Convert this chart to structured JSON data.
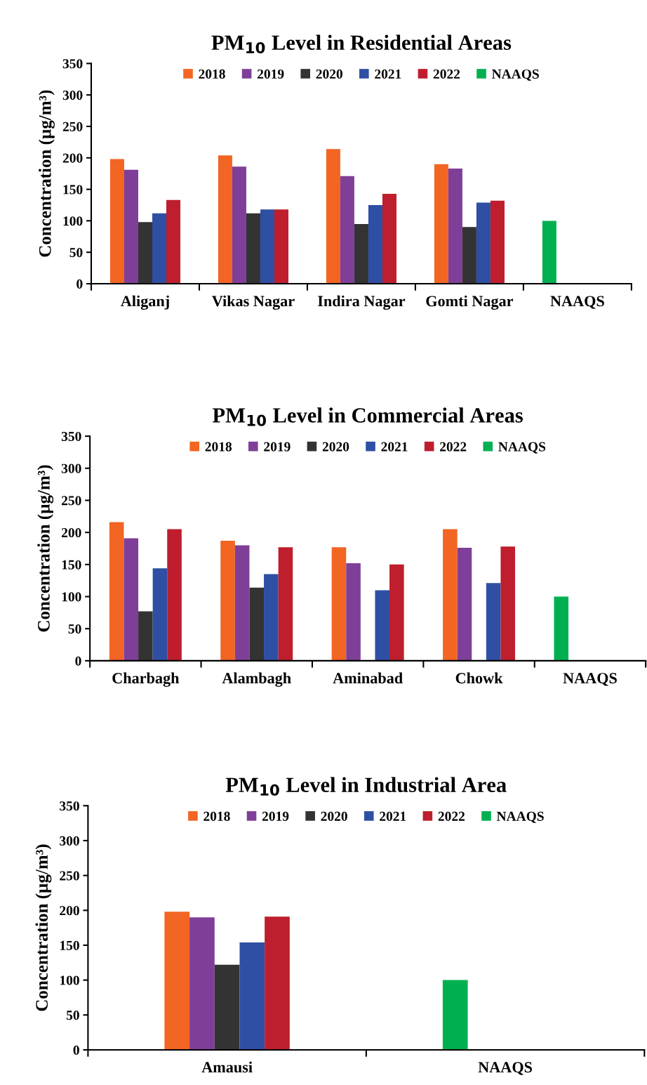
{
  "chart_data": [
    {
      "type": "bar",
      "title": "PM$_{10}$ Level in Residential Areas",
      "ylabel": "Concentration (µg/m³)",
      "categories": [
        "Aliganj",
        "Vikas Nagar",
        "Indira Nagar",
        "Gomti Nagar",
        "NAAQS"
      ],
      "ylim": [
        0,
        350
      ],
      "yticks": [
        0,
        50,
        100,
        150,
        200,
        250,
        300,
        350
      ],
      "grid": false,
      "legend": "top",
      "series": [
        {
          "name": "2018",
          "color": "#f26522",
          "values": [
            198,
            204,
            214,
            190,
            null
          ]
        },
        {
          "name": "2019",
          "color": "#7f3f98",
          "values": [
            181,
            186,
            171,
            183,
            null
          ]
        },
        {
          "name": "2020",
          "color": "#333333",
          "values": [
            98,
            112,
            95,
            90,
            null
          ]
        },
        {
          "name": "2021",
          "color": "#2e4fa3",
          "values": [
            112,
            118,
            125,
            129,
            null
          ]
        },
        {
          "name": "2022",
          "color": "#be1e2d",
          "values": [
            133,
            118,
            143,
            132,
            null
          ]
        },
        {
          "name": "NAAQS",
          "color": "#00b050",
          "values": [
            null,
            null,
            null,
            null,
            100
          ]
        }
      ]
    },
    {
      "type": "bar",
      "title": "PM$_{10}$ Level in Commercial Areas",
      "ylabel": "Concentration (µg/m³)",
      "categories": [
        "Charbagh",
        "Alambagh",
        "Aminabad",
        "Chowk",
        "NAAQS"
      ],
      "ylim": [
        0,
        350
      ],
      "yticks": [
        0,
        50,
        100,
        150,
        200,
        250,
        300,
        350
      ],
      "grid": false,
      "legend": "top",
      "series": [
        {
          "name": "2018",
          "color": "#f26522",
          "values": [
            216,
            187,
            177,
            205,
            null
          ]
        },
        {
          "name": "2019",
          "color": "#7f3f98",
          "values": [
            191,
            180,
            152,
            176,
            null
          ]
        },
        {
          "name": "2020",
          "color": "#333333",
          "values": [
            77,
            114,
            null,
            null,
            null
          ]
        },
        {
          "name": "2021",
          "color": "#2e4fa3",
          "values": [
            144,
            135,
            110,
            121,
            null
          ]
        },
        {
          "name": "2022",
          "color": "#be1e2d",
          "values": [
            205,
            177,
            150,
            178,
            null
          ]
        },
        {
          "name": "NAAQS",
          "color": "#00b050",
          "values": [
            null,
            null,
            null,
            null,
            100
          ]
        }
      ]
    },
    {
      "type": "bar",
      "title": "PM$_{10}$ Level in Industrial Area",
      "ylabel": "Concentration (µg/m³)",
      "categories": [
        "Amausi",
        "NAAQS"
      ],
      "ylim": [
        0,
        350
      ],
      "yticks": [
        0,
        50,
        100,
        150,
        200,
        250,
        300,
        350
      ],
      "grid": false,
      "legend": "top",
      "series": [
        {
          "name": "2018",
          "color": "#f26522",
          "values": [
            198,
            null
          ]
        },
        {
          "name": "2019",
          "color": "#7f3f98",
          "values": [
            190,
            null
          ]
        },
        {
          "name": "2020",
          "color": "#333333",
          "values": [
            122,
            null
          ]
        },
        {
          "name": "2021",
          "color": "#2e4fa3",
          "values": [
            154,
            null
          ]
        },
        {
          "name": "2022",
          "color": "#be1e2d",
          "values": [
            191,
            null
          ]
        },
        {
          "name": "NAAQS",
          "color": "#00b050",
          "values": [
            null,
            100
          ]
        }
      ]
    }
  ]
}
